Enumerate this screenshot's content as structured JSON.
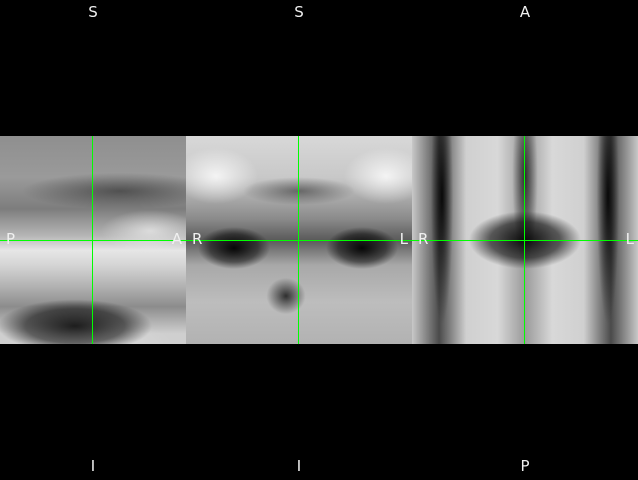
{
  "crosshair_color": "#00ff00",
  "background_color": "#000000",
  "views": {
    "sagittal": {
      "top": "S",
      "bottom": "I",
      "left": "P",
      "right": "A"
    },
    "coronal": {
      "top": "S",
      "bottom": "I",
      "left": "R",
      "right": "L"
    },
    "axial": {
      "top": "A",
      "bottom": "P",
      "left": "R",
      "right": "L"
    }
  }
}
